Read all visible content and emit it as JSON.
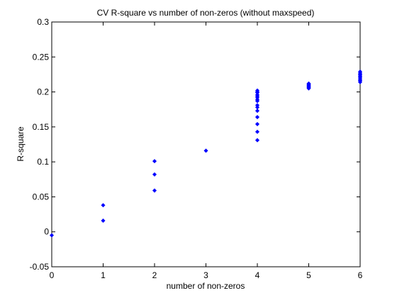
{
  "chart_data": {
    "type": "scatter",
    "title": "CV R-square vs number of non-zeros (without maxspeed)",
    "xlabel": "number of non-zeros",
    "ylabel": "R-square",
    "xlim": [
      0,
      6
    ],
    "ylim": [
      -0.05,
      0.3
    ],
    "xticks": [
      "0",
      "1",
      "2",
      "3",
      "4",
      "5",
      "6"
    ],
    "yticks": [
      "-0.05",
      "0",
      "0.05",
      "0.1",
      "0.15",
      "0.2",
      "0.25",
      "0.3"
    ],
    "grid": false,
    "marker": "diamond",
    "color": "#0000ff",
    "series": [
      {
        "x": [
          0,
          1,
          1,
          2,
          2,
          2,
          3,
          4,
          4,
          4,
          4,
          4,
          4,
          4,
          4,
          4,
          4,
          4,
          4,
          4,
          4,
          4,
          5,
          5,
          5,
          5,
          5,
          5,
          5,
          5,
          6,
          6,
          6,
          6,
          6,
          6,
          6,
          6,
          6,
          6
        ],
        "y": [
          -0.005,
          0.038,
          0.016,
          0.101,
          0.082,
          0.059,
          0.116,
          0.202,
          0.199,
          0.196,
          0.192,
          0.187,
          0.181,
          0.173,
          0.164,
          0.154,
          0.143,
          0.131,
          0.2,
          0.194,
          0.189,
          0.178,
          0.212,
          0.211,
          0.21,
          0.209,
          0.208,
          0.207,
          0.206,
          0.205,
          0.229,
          0.227,
          0.225,
          0.224,
          0.222,
          0.221,
          0.219,
          0.217,
          0.216,
          0.214
        ]
      }
    ]
  }
}
